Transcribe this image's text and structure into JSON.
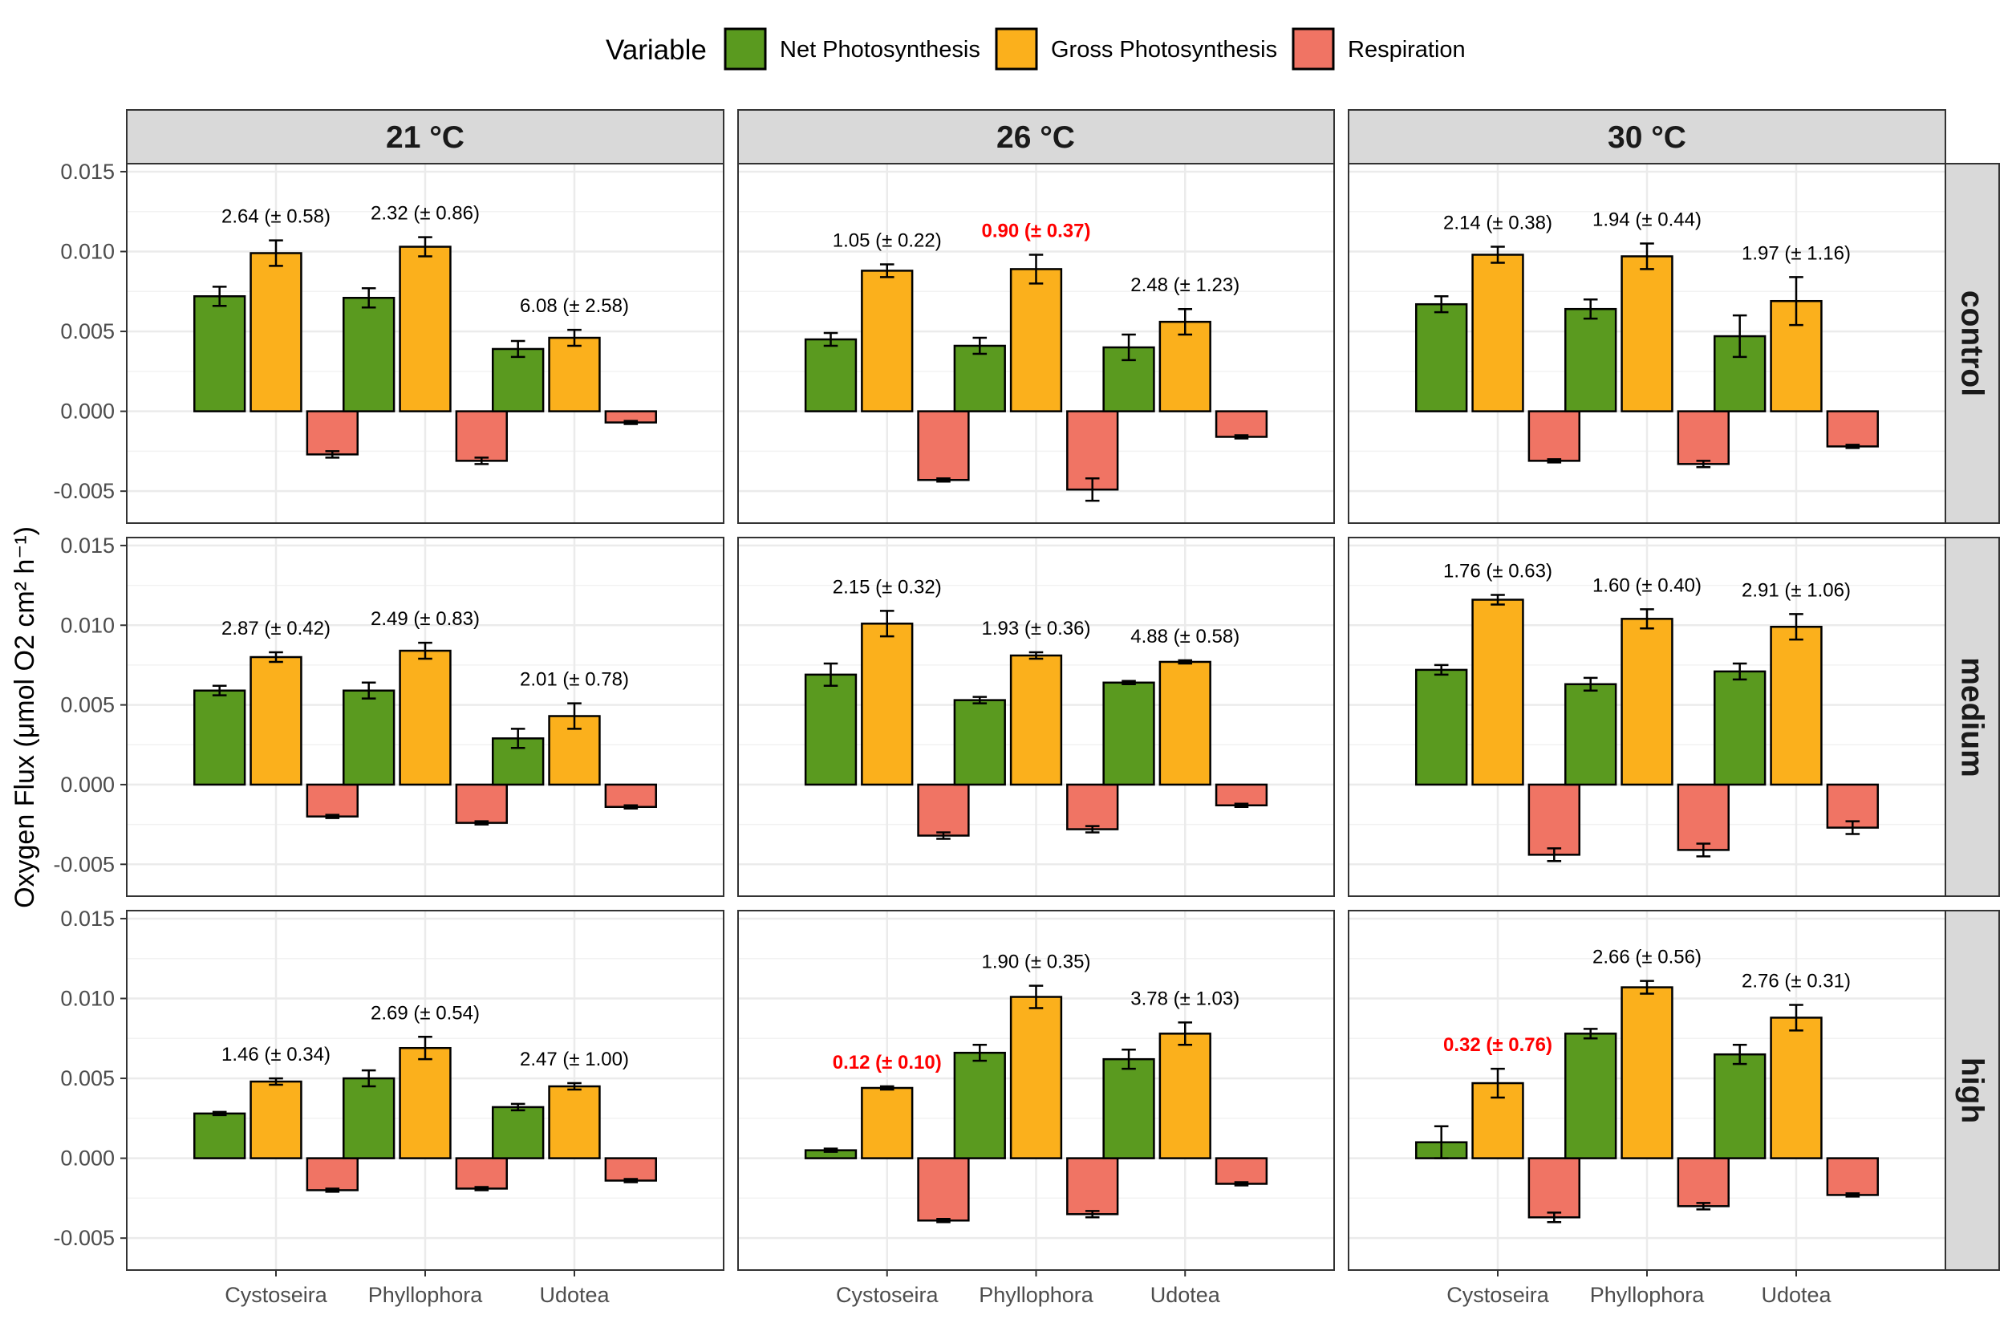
{
  "chart_data": {
    "type": "bar",
    "ylabel": "Oxygen Flux (μmol O2 cm² h⁻¹)",
    "xlabel": "",
    "ylim": [
      -0.007,
      0.0155
    ],
    "yticks": [
      -0.005,
      0.0,
      0.005,
      0.01,
      0.015
    ],
    "ytick_labels": [
      "-0.005",
      "0.000",
      "0.005",
      "0.010",
      "0.015"
    ],
    "grid": true,
    "legend": {
      "position": "top",
      "title": "Variable",
      "entries": [
        {
          "name": "Net Photosynthesis",
          "color": "#5a9a1f"
        },
        {
          "name": "Gross Photosynthesis",
          "color": "#fbb01c"
        },
        {
          "name": "Respiration",
          "color": "#f07464"
        }
      ]
    },
    "facet_cols": [
      "21 °C",
      "26 °C",
      "30 °C"
    ],
    "facet_rows": [
      "control",
      "medium",
      "high"
    ],
    "categories": [
      "Cystoseira",
      "Phyllophora",
      "Udotea"
    ],
    "panels": [
      {
        "row": "control",
        "col": "21 °C",
        "groups": [
          {
            "net": [
              0.0072,
              0.0006
            ],
            "gross": [
              0.0099,
              0.0008
            ],
            "resp": [
              -0.0027,
              0.0002
            ],
            "label": "2.64 (± 0.58)",
            "highlight": false
          },
          {
            "net": [
              0.0071,
              0.0006
            ],
            "gross": [
              0.0103,
              0.0006
            ],
            "resp": [
              -0.0031,
              0.0002
            ],
            "label": "2.32 (± 0.86)",
            "highlight": false
          },
          {
            "net": [
              0.0039,
              0.0005
            ],
            "gross": [
              0.0046,
              0.0005
            ],
            "resp": [
              -0.0007,
              0.0001
            ],
            "label": "6.08 (± 2.58)",
            "highlight": false
          }
        ]
      },
      {
        "row": "control",
        "col": "26 °C",
        "groups": [
          {
            "net": [
              0.0045,
              0.0004
            ],
            "gross": [
              0.0088,
              0.0004
            ],
            "resp": [
              -0.0043,
              0.0001
            ],
            "label": "1.05 (± 0.22)",
            "highlight": false
          },
          {
            "net": [
              0.0041,
              0.0005
            ],
            "gross": [
              0.0089,
              0.0009
            ],
            "resp": [
              -0.0049,
              0.0007
            ],
            "label": "0.90 (± 0.37)",
            "highlight": true
          },
          {
            "net": [
              0.004,
              0.0008
            ],
            "gross": [
              0.0056,
              0.0008
            ],
            "resp": [
              -0.0016,
              0.0001
            ],
            "label": "2.48 (± 1.23)",
            "highlight": false
          }
        ]
      },
      {
        "row": "control",
        "col": "30 °C",
        "groups": [
          {
            "net": [
              0.0067,
              0.0005
            ],
            "gross": [
              0.0098,
              0.0005
            ],
            "resp": [
              -0.0031,
              0.0001
            ],
            "label": "2.14 (± 0.38)",
            "highlight": false
          },
          {
            "net": [
              0.0064,
              0.0006
            ],
            "gross": [
              0.0097,
              0.0008
            ],
            "resp": [
              -0.0033,
              0.0002
            ],
            "label": "1.94 (± 0.44)",
            "highlight": false
          },
          {
            "net": [
              0.0047,
              0.0013
            ],
            "gross": [
              0.0069,
              0.0015
            ],
            "resp": [
              -0.0022,
              0.0001
            ],
            "label": "1.97 (± 1.16)",
            "highlight": false
          }
        ]
      },
      {
        "row": "medium",
        "col": "21 °C",
        "groups": [
          {
            "net": [
              0.0059,
              0.0003
            ],
            "gross": [
              0.008,
              0.0003
            ],
            "resp": [
              -0.002,
              0.0001
            ],
            "label": "2.87 (± 0.42)",
            "highlight": false
          },
          {
            "net": [
              0.0059,
              0.0005
            ],
            "gross": [
              0.0084,
              0.0005
            ],
            "resp": [
              -0.0024,
              0.0001
            ],
            "label": "2.49 (± 0.83)",
            "highlight": false
          },
          {
            "net": [
              0.0029,
              0.0006
            ],
            "gross": [
              0.0043,
              0.0008
            ],
            "resp": [
              -0.0014,
              0.0001
            ],
            "label": "2.01 (± 0.78)",
            "highlight": false
          }
        ]
      },
      {
        "row": "medium",
        "col": "26 °C",
        "groups": [
          {
            "net": [
              0.0069,
              0.0007
            ],
            "gross": [
              0.0101,
              0.0008
            ],
            "resp": [
              -0.0032,
              0.0002
            ],
            "label": "2.15 (± 0.32)",
            "highlight": false
          },
          {
            "net": [
              0.0053,
              0.0002
            ],
            "gross": [
              0.0081,
              0.0002
            ],
            "resp": [
              -0.0028,
              0.0002
            ],
            "label": "1.93 (± 0.36)",
            "highlight": false
          },
          {
            "net": [
              0.0064,
              0.0001
            ],
            "gross": [
              0.0077,
              0.0001
            ],
            "resp": [
              -0.0013,
              0.0001
            ],
            "label": "4.88 (± 0.58)",
            "highlight": false
          }
        ]
      },
      {
        "row": "medium",
        "col": "30 °C",
        "groups": [
          {
            "net": [
              0.0072,
              0.0003
            ],
            "gross": [
              0.0116,
              0.0003
            ],
            "resp": [
              -0.0044,
              0.0004
            ],
            "label": "1.76 (± 0.63)",
            "highlight": false
          },
          {
            "net": [
              0.0063,
              0.0004
            ],
            "gross": [
              0.0104,
              0.0006
            ],
            "resp": [
              -0.0041,
              0.0004
            ],
            "label": "1.60 (± 0.40)",
            "highlight": false
          },
          {
            "net": [
              0.0071,
              0.0005
            ],
            "gross": [
              0.0099,
              0.0008
            ],
            "resp": [
              -0.0027,
              0.0004
            ],
            "label": "2.91 (± 1.06)",
            "highlight": false
          }
        ]
      },
      {
        "row": "high",
        "col": "21 °C",
        "groups": [
          {
            "net": [
              0.0028,
              0.0001
            ],
            "gross": [
              0.0048,
              0.0002
            ],
            "resp": [
              -0.002,
              0.0001
            ],
            "label": "1.46 (± 0.34)",
            "highlight": false
          },
          {
            "net": [
              0.005,
              0.0005
            ],
            "gross": [
              0.0069,
              0.0007
            ],
            "resp": [
              -0.0019,
              0.0001
            ],
            "label": "2.69 (± 0.54)",
            "highlight": false
          },
          {
            "net": [
              0.0032,
              0.0002
            ],
            "gross": [
              0.0045,
              0.0002
            ],
            "resp": [
              -0.0014,
              0.0001
            ],
            "label": "2.47 (± 1.00)",
            "highlight": false
          }
        ]
      },
      {
        "row": "high",
        "col": "26 °C",
        "groups": [
          {
            "net": [
              0.0005,
              0.0001
            ],
            "gross": [
              0.0044,
              0.0001
            ],
            "resp": [
              -0.0039,
              0.0001
            ],
            "label": "0.12 (± 0.10)",
            "highlight": true
          },
          {
            "net": [
              0.0066,
              0.0005
            ],
            "gross": [
              0.0101,
              0.0007
            ],
            "resp": [
              -0.0035,
              0.0002
            ],
            "label": "1.90 (± 0.35)",
            "highlight": false
          },
          {
            "net": [
              0.0062,
              0.0006
            ],
            "gross": [
              0.0078,
              0.0007
            ],
            "resp": [
              -0.0016,
              0.0001
            ],
            "label": "3.78 (± 1.03)",
            "highlight": false
          }
        ]
      },
      {
        "row": "high",
        "col": "30 °C",
        "groups": [
          {
            "net": [
              0.001,
              0.001
            ],
            "gross": [
              0.0047,
              0.0009
            ],
            "resp": [
              -0.0037,
              0.0003
            ],
            "label": "0.32 (± 0.76)",
            "highlight": true
          },
          {
            "net": [
              0.0078,
              0.0003
            ],
            "gross": [
              0.0107,
              0.0004
            ],
            "resp": [
              -0.003,
              0.0002
            ],
            "label": "2.66 (± 0.56)",
            "highlight": false
          },
          {
            "net": [
              0.0065,
              0.0006
            ],
            "gross": [
              0.0088,
              0.0008
            ],
            "resp": [
              -0.0023,
              0.0001
            ],
            "label": "2.76 (± 0.31)",
            "highlight": false
          }
        ]
      }
    ]
  }
}
